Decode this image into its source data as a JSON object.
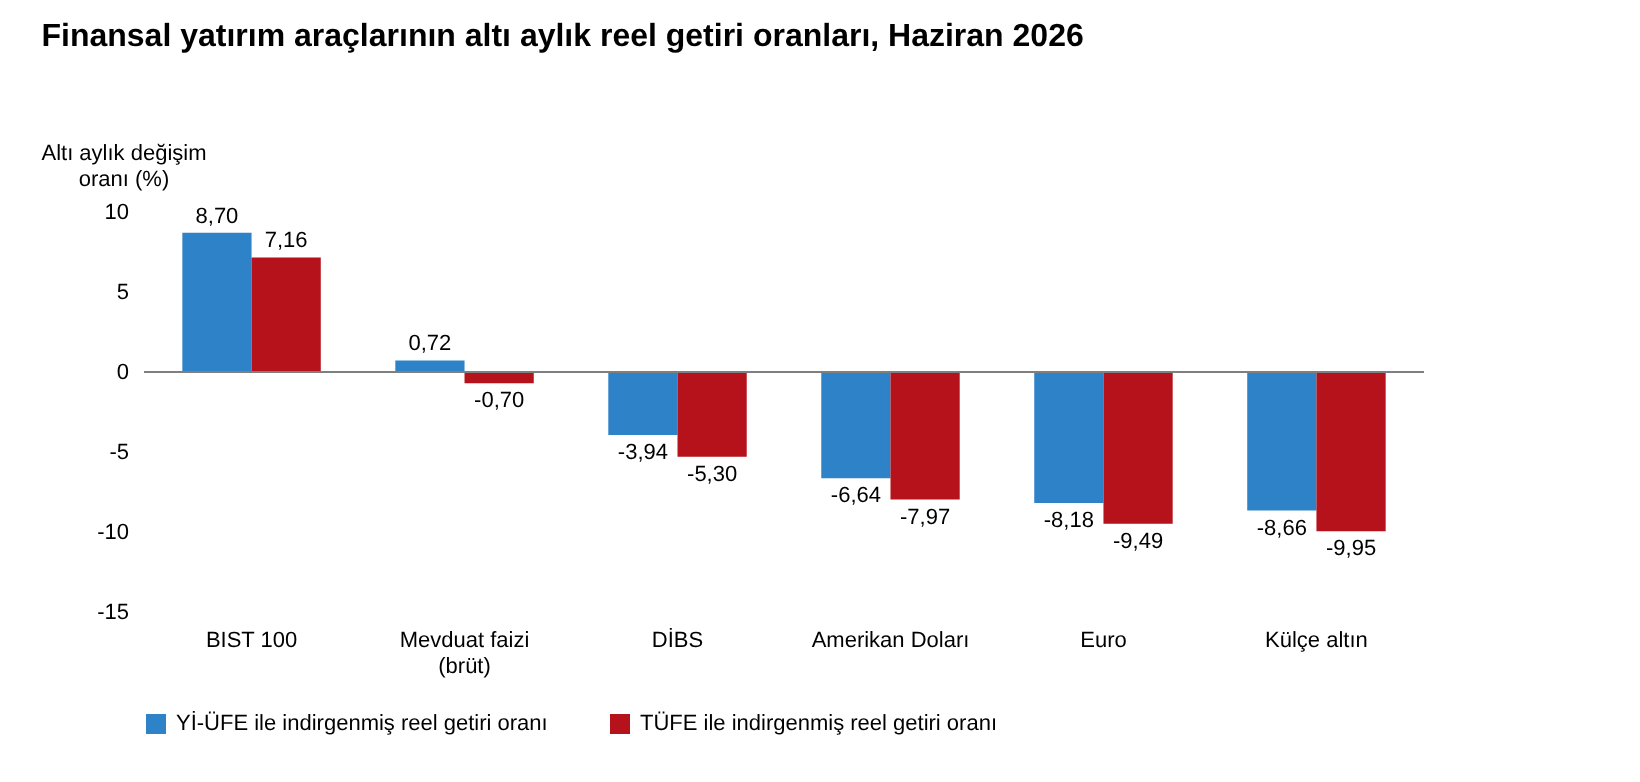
{
  "chart_data": {
    "type": "bar",
    "title": "Finansal yatırım araçlarının altı aylık reel getiri oranları, Haziran 2026",
    "ylabel": "Altı aylık değişim\noranı (%)",
    "categories": [
      "BIST 100",
      "Mevduat faizi\n(brüt)",
      "DİBS",
      "Amerikan Doları",
      "Euro",
      "Külçe altın"
    ],
    "series": [
      {
        "name": "Yİ-ÜFE ile indirgenmiş reel getiri oranı",
        "color": "#2e83c8",
        "values": [
          8.7,
          0.72,
          -3.94,
          -6.64,
          -8.18,
          -8.66
        ],
        "value_labels": [
          "8,70",
          "0,72",
          "-3,94",
          "-6,64",
          "-8,18",
          "-8,66"
        ]
      },
      {
        "name": "TÜFE ile indirgenmiş reel getiri oranı",
        "color": "#b5121b",
        "values": [
          7.16,
          -0.7,
          -5.3,
          -7.97,
          -9.49,
          -9.95
        ],
        "value_labels": [
          "7,16",
          "-0,70",
          "-5,30",
          "-7,97",
          "-9,49",
          "-9,95"
        ]
      }
    ],
    "ylim": [
      -15,
      10
    ],
    "yticks": [
      -15,
      -10,
      -5,
      0,
      5,
      10
    ],
    "ref_lines": [
      {
        "axis": "y",
        "value": 0,
        "color": "#7f7f7f"
      }
    ],
    "legend": "bottom"
  }
}
